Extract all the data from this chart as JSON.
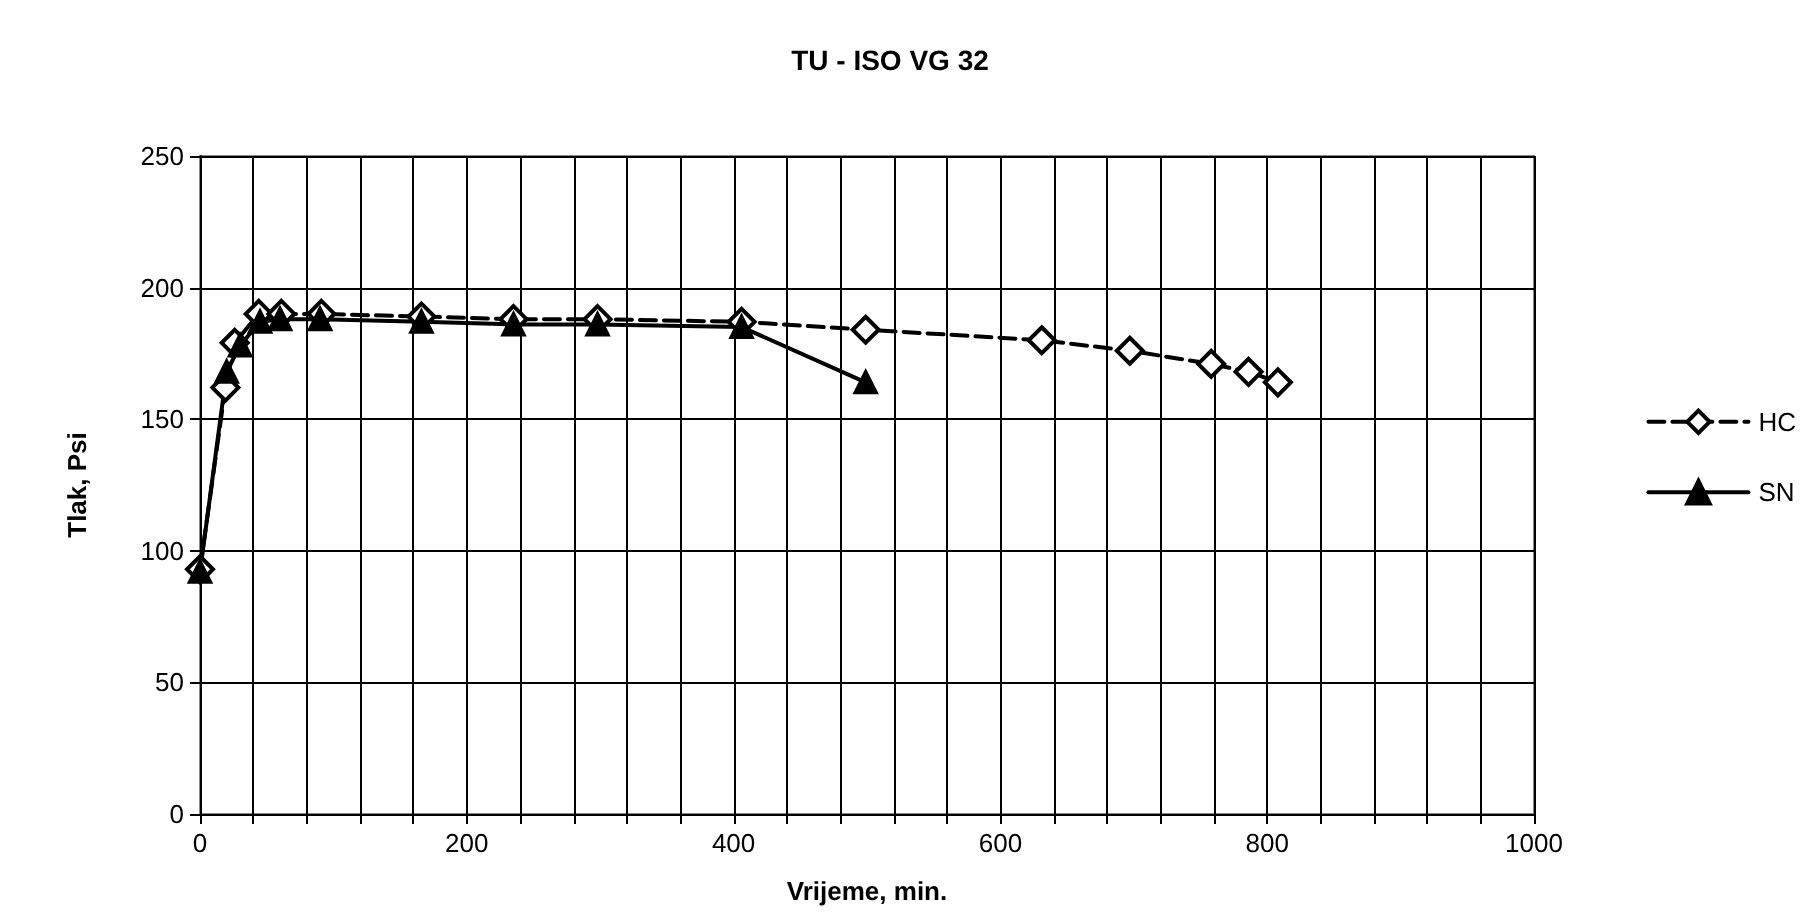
{
  "chart_data": {
    "type": "line",
    "title": "TU - ISO VG 32",
    "xlabel": "Vrijeme, min.",
    "ylabel": "Tlak, Psi",
    "xlim": [
      0,
      1000
    ],
    "xticks": [
      0,
      {
        "value": 40,
        "label": null
      },
      {
        "value": 80,
        "label": null
      },
      {
        "value": 120,
        "label": null
      },
      {
        "value": 160,
        "label": null
      },
      200,
      {
        "value": 240,
        "label": null
      },
      {
        "value": 280,
        "label": null
      },
      {
        "value": 320,
        "label": null
      },
      {
        "value": 360,
        "label": null
      },
      400,
      {
        "value": 440,
        "label": null
      },
      {
        "value": 480,
        "label": null
      },
      {
        "value": 520,
        "label": null
      },
      {
        "value": 560,
        "label": null
      },
      600,
      {
        "value": 640,
        "label": null
      },
      {
        "value": 680,
        "label": null
      },
      {
        "value": 720,
        "label": null
      },
      {
        "value": 760,
        "label": null
      },
      800,
      {
        "value": 840,
        "label": null
      },
      {
        "value": 880,
        "label": null
      },
      {
        "value": 920,
        "label": null
      },
      {
        "value": 960,
        "label": null
      },
      1000
    ],
    "ylim": [
      0,
      250
    ],
    "yticks": [
      0,
      50,
      100,
      150,
      200,
      250
    ],
    "grid": true,
    "legend": "right",
    "series": [
      {
        "name": "HC",
        "color": "#000000",
        "marker": "diamond",
        "line_style": "dashed",
        "x": [
          0,
          19,
          26,
          44,
          61,
          91,
          166,
          235,
          298,
          406,
          499,
          631,
          697,
          758,
          786,
          808
        ],
        "values": [
          93,
          162,
          179,
          190,
          190,
          190,
          189,
          188,
          188,
          187,
          184,
          180,
          176,
          171,
          168,
          164
        ]
      },
      {
        "name": "SN",
        "color": "#000000",
        "marker": "triangle",
        "line_style": "solid",
        "x": [
          0,
          20,
          30,
          45,
          60,
          90,
          166,
          235,
          298,
          406,
          499
        ],
        "values": [
          92,
          168,
          178,
          187,
          188,
          188,
          187,
          186,
          186,
          185,
          164
        ]
      }
    ]
  }
}
